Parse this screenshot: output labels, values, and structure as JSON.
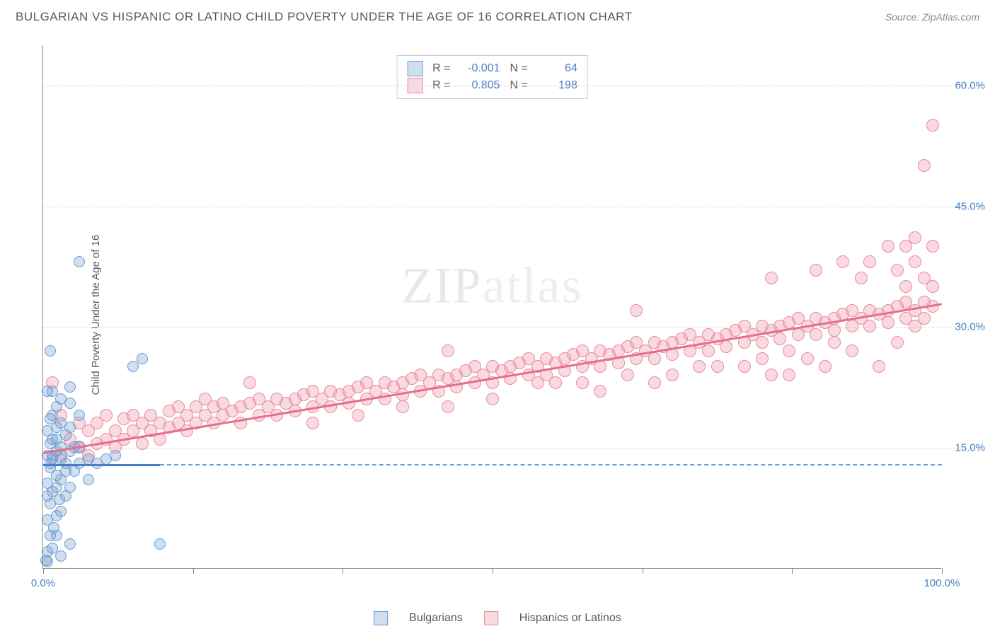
{
  "title": "BULGARIAN VS HISPANIC OR LATINO CHILD POVERTY UNDER THE AGE OF 16 CORRELATION CHART",
  "source": "Source: ZipAtlas.com",
  "ylabel": "Child Poverty Under the Age of 16",
  "watermark_main": "ZIP",
  "watermark_sub": "atlas",
  "chart": {
    "type": "scatter",
    "background_color": "#ffffff",
    "grid_color": "#dcdcdc",
    "axis_color": "#888888",
    "xlim": [
      0,
      100
    ],
    "ylim": [
      0,
      65
    ],
    "xtick_positions": [
      0,
      16.67,
      33.33,
      50,
      66.67,
      83.33,
      100
    ],
    "xtick_labels": {
      "0": "0.0%",
      "100": "100.0%"
    },
    "ytick_positions": [
      15,
      30,
      45,
      60
    ],
    "ytick_labels": {
      "15": "15.0%",
      "30": "30.0%",
      "45": "45.0%",
      "60": "60.0%"
    },
    "tick_label_color": "#4a7ec4",
    "label_fontsize": 15
  },
  "series_blue": {
    "label": "Bulgarians",
    "fill": "rgba(120,160,210,0.35)",
    "stroke": "#6a9bd1",
    "marker_radius": 8,
    "R": "-0.001",
    "N": "64",
    "trend": {
      "x1": 0,
      "y1": 13,
      "x2": 13,
      "y2": 13,
      "color": "#4a7ec4"
    },
    "trend_dash": {
      "x1": 13,
      "y1": 13,
      "x2": 100,
      "y2": 13,
      "color": "#6a9bd1"
    },
    "points": [
      [
        0.3,
        1
      ],
      [
        0.5,
        2
      ],
      [
        1,
        2.5
      ],
      [
        0.8,
        4
      ],
      [
        1.2,
        5
      ],
      [
        0.5,
        6
      ],
      [
        1.5,
        6.5
      ],
      [
        2,
        7
      ],
      [
        0.8,
        8
      ],
      [
        1.8,
        8.5
      ],
      [
        2.5,
        9
      ],
      [
        1,
        9.5
      ],
      [
        3,
        10
      ],
      [
        0.5,
        10.5
      ],
      [
        2,
        11
      ],
      [
        1.5,
        11.5
      ],
      [
        3.5,
        12
      ],
      [
        0.8,
        12.5
      ],
      [
        4,
        13
      ],
      [
        1,
        13.5
      ],
      [
        2.5,
        13
      ],
      [
        5,
        13.5
      ],
      [
        0.5,
        14
      ],
      [
        3,
        14.5
      ],
      [
        1.5,
        14.5
      ],
      [
        6,
        13
      ],
      [
        2,
        15
      ],
      [
        0.8,
        15.5
      ],
      [
        4,
        15
      ],
      [
        1,
        16
      ],
      [
        7,
        13.5
      ],
      [
        2.5,
        16.5
      ],
      [
        0.5,
        17
      ],
      [
        3,
        17.5
      ],
      [
        1.5,
        17.5
      ],
      [
        2,
        18
      ],
      [
        0.8,
        18.5
      ],
      [
        4,
        19
      ],
      [
        1.5,
        20
      ],
      [
        3,
        20.5
      ],
      [
        2,
        21
      ],
      [
        1,
        22
      ],
      [
        0.5,
        22
      ],
      [
        3,
        22.5
      ],
      [
        1.5,
        16
      ],
      [
        2.5,
        12
      ],
      [
        5,
        11
      ],
      [
        8,
        14
      ],
      [
        1,
        19
      ],
      [
        0.8,
        13
      ],
      [
        1.5,
        10
      ],
      [
        0.5,
        9
      ],
      [
        2,
        13.5
      ],
      [
        3.5,
        15
      ],
      [
        1,
        14
      ],
      [
        10,
        25
      ],
      [
        11,
        26
      ],
      [
        4,
        38
      ],
      [
        0.8,
        27
      ],
      [
        13,
        3
      ],
      [
        2,
        1.5
      ],
      [
        3,
        3
      ],
      [
        1.5,
        4
      ],
      [
        0.5,
        0.8
      ]
    ]
  },
  "series_pink": {
    "label": "Hispanics or Latinos",
    "fill": "rgba(240,150,170,0.35)",
    "stroke": "#e989a0",
    "marker_radius": 9,
    "R": "0.805",
    "N": "198",
    "trend": {
      "x1": 0,
      "y1": 14.5,
      "x2": 100,
      "y2": 33,
      "color": "#e86d8b"
    },
    "points": [
      [
        1,
        23
      ],
      [
        2,
        14
      ],
      [
        2,
        19
      ],
      [
        3,
        16
      ],
      [
        4,
        15
      ],
      [
        4,
        18
      ],
      [
        5,
        17
      ],
      [
        5,
        14
      ],
      [
        6,
        18
      ],
      [
        6,
        15.5
      ],
      [
        7,
        16
      ],
      [
        7,
        19
      ],
      [
        8,
        17
      ],
      [
        8,
        15
      ],
      [
        9,
        18.5
      ],
      [
        9,
        16
      ],
      [
        10,
        17
      ],
      [
        10,
        19
      ],
      [
        11,
        18
      ],
      [
        11,
        15.5
      ],
      [
        12,
        19
      ],
      [
        12,
        17
      ],
      [
        13,
        18
      ],
      [
        13,
        16
      ],
      [
        14,
        19.5
      ],
      [
        14,
        17.5
      ],
      [
        15,
        18
      ],
      [
        15,
        20
      ],
      [
        16,
        19
      ],
      [
        16,
        17
      ],
      [
        17,
        20
      ],
      [
        17,
        18
      ],
      [
        18,
        19
      ],
      [
        18,
        21
      ],
      [
        19,
        20
      ],
      [
        19,
        18
      ],
      [
        20,
        20.5
      ],
      [
        20,
        19
      ],
      [
        21,
        19.5
      ],
      [
        22,
        20
      ],
      [
        22,
        18
      ],
      [
        23,
        20.5
      ],
      [
        24,
        19
      ],
      [
        24,
        21
      ],
      [
        25,
        20
      ],
      [
        26,
        21
      ],
      [
        26,
        19
      ],
      [
        27,
        20.5
      ],
      [
        28,
        21
      ],
      [
        28,
        19.5
      ],
      [
        29,
        21.5
      ],
      [
        30,
        20
      ],
      [
        30,
        22
      ],
      [
        31,
        21
      ],
      [
        32,
        22
      ],
      [
        32,
        20
      ],
      [
        33,
        21.5
      ],
      [
        34,
        22
      ],
      [
        34,
        20.5
      ],
      [
        35,
        22.5
      ],
      [
        36,
        21
      ],
      [
        36,
        23
      ],
      [
        37,
        22
      ],
      [
        38,
        23
      ],
      [
        38,
        21
      ],
      [
        39,
        22.5
      ],
      [
        40,
        23
      ],
      [
        40,
        21.5
      ],
      [
        41,
        23.5
      ],
      [
        42,
        22
      ],
      [
        42,
        24
      ],
      [
        43,
        23
      ],
      [
        44,
        24
      ],
      [
        44,
        22
      ],
      [
        45,
        23.5
      ],
      [
        45,
        27
      ],
      [
        46,
        24
      ],
      [
        46,
        22.5
      ],
      [
        47,
        24.5
      ],
      [
        48,
        23
      ],
      [
        48,
        25
      ],
      [
        49,
        24
      ],
      [
        50,
        25
      ],
      [
        50,
        23
      ],
      [
        51,
        24.5
      ],
      [
        52,
        25
      ],
      [
        52,
        23.5
      ],
      [
        53,
        25.5
      ],
      [
        54,
        24
      ],
      [
        54,
        26
      ],
      [
        55,
        25
      ],
      [
        56,
        26
      ],
      [
        56,
        24
      ],
      [
        57,
        25.5
      ],
      [
        58,
        26
      ],
      [
        58,
        24.5
      ],
      [
        59,
        26.5
      ],
      [
        60,
        25
      ],
      [
        60,
        27
      ],
      [
        61,
        26
      ],
      [
        62,
        27
      ],
      [
        62,
        25
      ],
      [
        63,
        26.5
      ],
      [
        64,
        27
      ],
      [
        64,
        25.5
      ],
      [
        65,
        27.5
      ],
      [
        66,
        26
      ],
      [
        66,
        28
      ],
      [
        66,
        32
      ],
      [
        67,
        27
      ],
      [
        68,
        28
      ],
      [
        68,
        26
      ],
      [
        69,
        27.5
      ],
      [
        70,
        28
      ],
      [
        70,
        26.5
      ],
      [
        71,
        28.5
      ],
      [
        72,
        27
      ],
      [
        72,
        29
      ],
      [
        73,
        28
      ],
      [
        74,
        29
      ],
      [
        74,
        27
      ],
      [
        75,
        28.5
      ],
      [
        76,
        29
      ],
      [
        76,
        27.5
      ],
      [
        77,
        29.5
      ],
      [
        78,
        28
      ],
      [
        78,
        30
      ],
      [
        79,
        29
      ],
      [
        80,
        30
      ],
      [
        80,
        28
      ],
      [
        81,
        29.5
      ],
      [
        81,
        24
      ],
      [
        81,
        36
      ],
      [
        82,
        30
      ],
      [
        82,
        28.5
      ],
      [
        83,
        30.5
      ],
      [
        83,
        24
      ],
      [
        84,
        29
      ],
      [
        84,
        31
      ],
      [
        85,
        30
      ],
      [
        86,
        31
      ],
      [
        86,
        29
      ],
      [
        86,
        37
      ],
      [
        87,
        30.5
      ],
      [
        87,
        25
      ],
      [
        88,
        31
      ],
      [
        88,
        29.5
      ],
      [
        89,
        31.5
      ],
      [
        89,
        38
      ],
      [
        90,
        30
      ],
      [
        90,
        32
      ],
      [
        91,
        31
      ],
      [
        91,
        36
      ],
      [
        92,
        32
      ],
      [
        92,
        30
      ],
      [
        92,
        38
      ],
      [
        93,
        31.5
      ],
      [
        93,
        25
      ],
      [
        94,
        32
      ],
      [
        94,
        30.5
      ],
      [
        94,
        40
      ],
      [
        95,
        32.5
      ],
      [
        95,
        28
      ],
      [
        95,
        37
      ],
      [
        96,
        31
      ],
      [
        96,
        33
      ],
      [
        96,
        40
      ],
      [
        96,
        35
      ],
      [
        97,
        32
      ],
      [
        97,
        38
      ],
      [
        97,
        30
      ],
      [
        97,
        41
      ],
      [
        98,
        33
      ],
      [
        98,
        31
      ],
      [
        98,
        36
      ],
      [
        98,
        50
      ],
      [
        99,
        32.5
      ],
      [
        99,
        35
      ],
      [
        99,
        40
      ],
      [
        99,
        55
      ],
      [
        23,
        23
      ],
      [
        30,
        18
      ],
      [
        35,
        19
      ],
      [
        40,
        20
      ],
      [
        45,
        20
      ],
      [
        50,
        21
      ],
      [
        55,
        23
      ],
      [
        60,
        23
      ],
      [
        65,
        24
      ],
      [
        70,
        24
      ],
      [
        75,
        25
      ],
      [
        80,
        26
      ],
      [
        85,
        26
      ],
      [
        90,
        27
      ],
      [
        57,
        23
      ],
      [
        62,
        22
      ],
      [
        68,
        23
      ],
      [
        73,
        25
      ],
      [
        78,
        25
      ],
      [
        83,
        27
      ],
      [
        88,
        28
      ]
    ]
  },
  "legend_labels": {
    "R": "R =",
    "N": "N ="
  }
}
